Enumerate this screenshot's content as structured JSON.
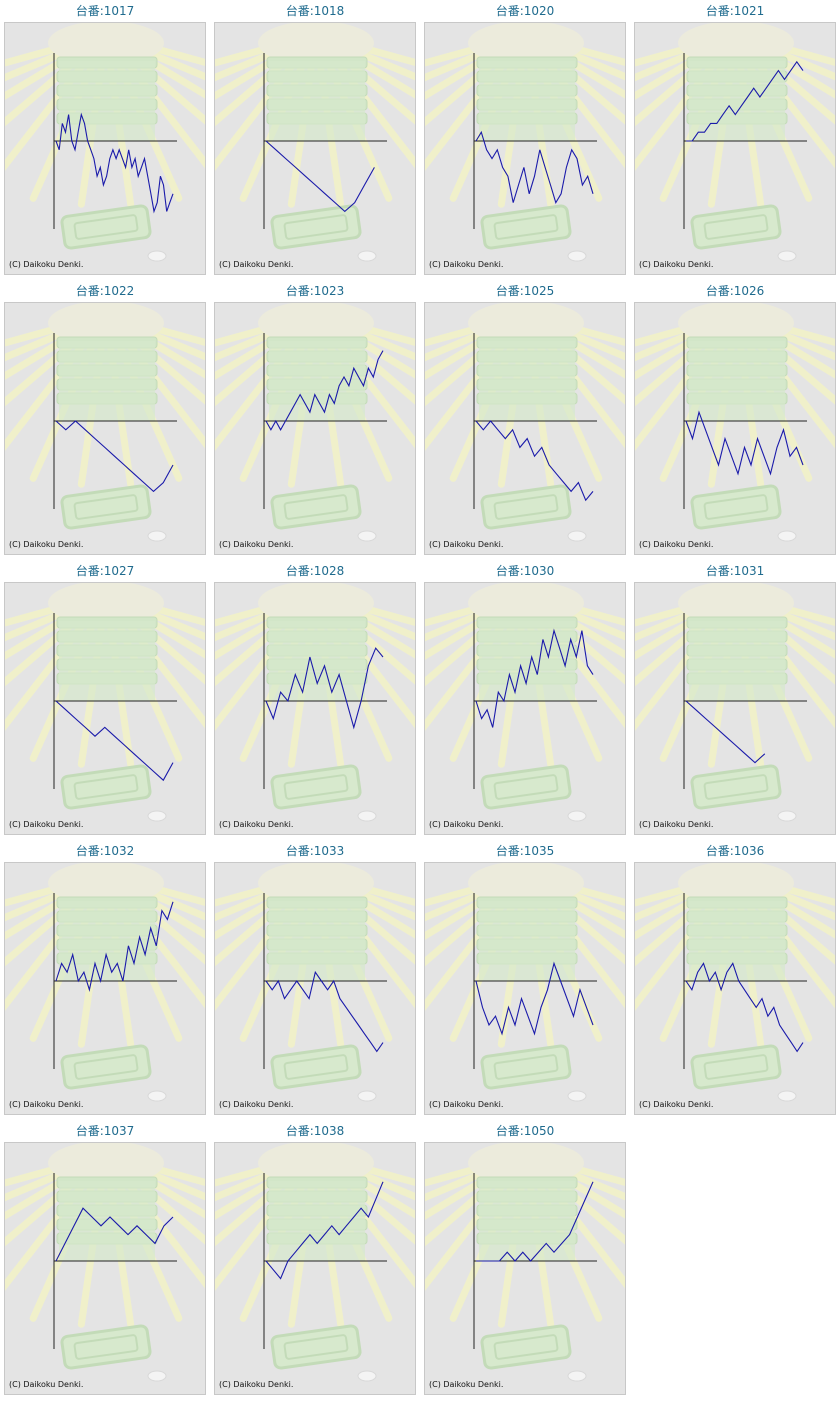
{
  "colors": {
    "title": "#1f6b8e",
    "line": "#1a1aaa",
    "axis": "#222222",
    "panel": "#e4e4e4",
    "border": "#c8c8c8"
  },
  "copyright": "(C) Daikoku Denki.",
  "chart_data": [
    {
      "type": "line",
      "title": "台番:1017",
      "ylim": [
        -10,
        10
      ],
      "series": [
        {
          "values": [
            0,
            -1,
            2,
            1,
            3,
            0,
            -1,
            1,
            3,
            2,
            0,
            -1,
            -2,
            -4,
            -3,
            -5,
            -4,
            -2,
            -1,
            -2,
            -1,
            -2,
            -3,
            -1,
            -3,
            -2,
            -4,
            -3,
            -2,
            -4,
            -6,
            -8,
            -7,
            -4,
            -5,
            -8,
            -7,
            -6
          ]
        }
      ]
    },
    {
      "type": "line",
      "title": "台番:1018",
      "ylim": [
        -10,
        10
      ],
      "series": [
        {
          "values": [
            0,
            -1,
            -2,
            -3,
            -4,
            -5,
            -6,
            -7,
            -8,
            -7,
            -5,
            -3
          ]
        }
      ]
    },
    {
      "type": "line",
      "title": "台番:1020",
      "ylim": [
        -10,
        10
      ],
      "series": [
        {
          "values": [
            0,
            1,
            -1,
            -2,
            -1,
            -3,
            -4,
            -7,
            -5,
            -3,
            -6,
            -4,
            -1,
            -3,
            -5,
            -7,
            -6,
            -3,
            -1,
            -2,
            -5,
            -4,
            -6
          ]
        }
      ]
    },
    {
      "type": "line",
      "title": "台番:1021",
      "ylim": [
        -10,
        10
      ],
      "series": [
        {
          "values": [
            0,
            0,
            1,
            1,
            2,
            2,
            3,
            4,
            3,
            4,
            5,
            6,
            5,
            6,
            7,
            8,
            7,
            8,
            9,
            8
          ]
        }
      ]
    },
    {
      "type": "line",
      "title": "台番:1022",
      "ylim": [
        -10,
        10
      ],
      "series": [
        {
          "values": [
            0,
            -1,
            0,
            -1,
            -2,
            -3,
            -4,
            -5,
            -6,
            -7,
            -8,
            -7,
            -5
          ]
        }
      ]
    },
    {
      "type": "line",
      "title": "台番:1023",
      "ylim": [
        -10,
        10
      ],
      "series": [
        {
          "values": [
            0,
            -1,
            0,
            -1,
            0,
            1,
            2,
            3,
            2,
            1,
            3,
            2,
            1,
            3,
            2,
            4,
            5,
            4,
            6,
            5,
            4,
            6,
            5,
            7,
            8
          ]
        }
      ]
    },
    {
      "type": "line",
      "title": "台番:1025",
      "ylim": [
        -10,
        10
      ],
      "series": [
        {
          "values": [
            0,
            -1,
            0,
            -1,
            -2,
            -1,
            -3,
            -2,
            -4,
            -3,
            -5,
            -6,
            -7,
            -8,
            -7,
            -9,
            -8
          ]
        }
      ]
    },
    {
      "type": "line",
      "title": "台番:1026",
      "ylim": [
        -10,
        10
      ],
      "series": [
        {
          "values": [
            0,
            -2,
            1,
            -1,
            -3,
            -5,
            -2,
            -4,
            -6,
            -3,
            -5,
            -2,
            -4,
            -6,
            -3,
            -1,
            -4,
            -3,
            -5
          ]
        }
      ]
    },
    {
      "type": "line",
      "title": "台番:1027",
      "ylim": [
        -10,
        10
      ],
      "series": [
        {
          "values": [
            0,
            -1,
            -2,
            -3,
            -4,
            -3,
            -4,
            -5,
            -6,
            -7,
            -8,
            -9,
            -7
          ]
        }
      ]
    },
    {
      "type": "line",
      "title": "台番:1028",
      "ylim": [
        -10,
        10
      ],
      "series": [
        {
          "values": [
            0,
            -2,
            1,
            0,
            3,
            1,
            5,
            2,
            4,
            1,
            3,
            0,
            -3,
            0,
            4,
            6,
            5
          ]
        }
      ]
    },
    {
      "type": "line",
      "title": "台番:1030",
      "ylim": [
        -10,
        10
      ],
      "series": [
        {
          "values": [
            0,
            -2,
            -1,
            -3,
            1,
            0,
            3,
            1,
            4,
            2,
            5,
            3,
            7,
            5,
            8,
            6,
            4,
            7,
            5,
            8,
            4,
            3
          ]
        }
      ]
    },
    {
      "type": "line",
      "title": "台番:1031",
      "ylim": [
        -10,
        10
      ],
      "series": [
        {
          "values": [
            0,
            -1,
            -2,
            -3,
            -4,
            -5,
            -6,
            -7,
            -6
          ]
        }
      ]
    },
    {
      "type": "line",
      "title": "台番:1032",
      "ylim": [
        -10,
        10
      ],
      "series": [
        {
          "values": [
            0,
            2,
            1,
            3,
            0,
            1,
            -1,
            2,
            0,
            3,
            1,
            2,
            0,
            4,
            2,
            5,
            3,
            6,
            4,
            8,
            7,
            9
          ]
        }
      ]
    },
    {
      "type": "line",
      "title": "台番:1033",
      "ylim": [
        -10,
        10
      ],
      "series": [
        {
          "values": [
            0,
            -1,
            0,
            -2,
            -1,
            0,
            -1,
            -2,
            1,
            0,
            -1,
            0,
            -2,
            -3,
            -4,
            -5,
            -6,
            -7,
            -8,
            -7
          ]
        }
      ]
    },
    {
      "type": "line",
      "title": "台番:1035",
      "ylim": [
        -10,
        10
      ],
      "series": [
        {
          "values": [
            0,
            -3,
            -5,
            -4,
            -6,
            -3,
            -5,
            -2,
            -4,
            -6,
            -3,
            -1,
            2,
            0,
            -2,
            -4,
            -1,
            -3,
            -5
          ]
        }
      ]
    },
    {
      "type": "line",
      "title": "台番:1036",
      "ylim": [
        -10,
        10
      ],
      "series": [
        {
          "values": [
            0,
            -1,
            1,
            2,
            0,
            1,
            -1,
            1,
            2,
            0,
            -1,
            -2,
            -3,
            -2,
            -4,
            -3,
            -5,
            -6,
            -7,
            -8,
            -7
          ]
        }
      ]
    },
    {
      "type": "line",
      "title": "台番:1037",
      "ylim": [
        -10,
        10
      ],
      "series": [
        {
          "values": [
            0,
            2,
            4,
            6,
            5,
            4,
            5,
            4,
            3,
            4,
            3,
            2,
            4,
            5
          ]
        }
      ]
    },
    {
      "type": "line",
      "title": "台番:1038",
      "ylim": [
        -10,
        10
      ],
      "series": [
        {
          "values": [
            0,
            -1,
            -2,
            0,
            1,
            2,
            3,
            2,
            3,
            4,
            3,
            4,
            5,
            6,
            5,
            7,
            9
          ]
        }
      ]
    },
    {
      "type": "line",
      "title": "台番:1050",
      "ylim": [
        -10,
        10
      ],
      "series": [
        {
          "values": [
            0,
            0,
            0,
            0,
            1,
            0,
            1,
            0,
            1,
            2,
            1,
            2,
            3,
            5,
            7,
            9
          ]
        }
      ]
    }
  ]
}
